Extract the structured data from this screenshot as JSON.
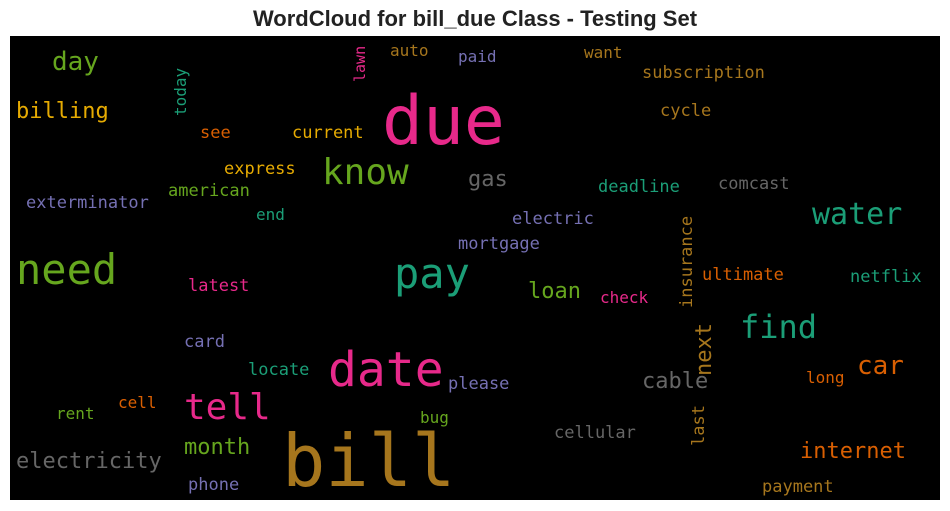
{
  "title": "WordCloud for bill_due Class - Testing Set",
  "chart_data": {
    "type": "wordcloud",
    "background": "#000000",
    "words": [
      {
        "text": "bill",
        "weight": 1.0,
        "color": "#a6761d",
        "orientation": "horizontal"
      },
      {
        "text": "due",
        "weight": 0.92,
        "color": "#e7298a",
        "orientation": "horizontal"
      },
      {
        "text": "date",
        "weight": 0.62,
        "color": "#e7298a",
        "orientation": "horizontal"
      },
      {
        "text": "pay",
        "weight": 0.58,
        "color": "#1b9e77",
        "orientation": "horizontal"
      },
      {
        "text": "need",
        "weight": 0.58,
        "color": "#66a61e",
        "orientation": "horizontal"
      },
      {
        "text": "know",
        "weight": 0.5,
        "color": "#66a61e",
        "orientation": "horizontal"
      },
      {
        "text": "tell",
        "weight": 0.48,
        "color": "#e7298a",
        "orientation": "horizontal"
      },
      {
        "text": "find",
        "weight": 0.44,
        "color": "#1b9e77",
        "orientation": "horizontal"
      },
      {
        "text": "water",
        "weight": 0.4,
        "color": "#1b9e77",
        "orientation": "horizontal"
      },
      {
        "text": "car",
        "weight": 0.36,
        "color": "#d95f02",
        "orientation": "horizontal"
      },
      {
        "text": "day",
        "weight": 0.36,
        "color": "#66a61e",
        "orientation": "horizontal"
      },
      {
        "text": "electricity",
        "weight": 0.32,
        "color": "#666666",
        "orientation": "horizontal"
      },
      {
        "text": "billing",
        "weight": 0.32,
        "color": "#e6ab02",
        "orientation": "horizontal"
      },
      {
        "text": "month",
        "weight": 0.3,
        "color": "#66a61e",
        "orientation": "horizontal"
      },
      {
        "text": "internet",
        "weight": 0.3,
        "color": "#d95f02",
        "orientation": "horizontal"
      },
      {
        "text": "cable",
        "weight": 0.3,
        "color": "#666666",
        "orientation": "horizontal"
      },
      {
        "text": "gas",
        "weight": 0.3,
        "color": "#666666",
        "orientation": "horizontal"
      },
      {
        "text": "next",
        "weight": 0.3,
        "color": "#a6761d",
        "orientation": "vertical"
      },
      {
        "text": "loan",
        "weight": 0.28,
        "color": "#66a61e",
        "orientation": "horizontal"
      },
      {
        "text": "exterminator",
        "weight": 0.24,
        "color": "#7570b3",
        "orientation": "horizontal"
      },
      {
        "text": "express",
        "weight": 0.24,
        "color": "#e6ab02",
        "orientation": "horizontal"
      },
      {
        "text": "current",
        "weight": 0.24,
        "color": "#e6ab02",
        "orientation": "horizontal"
      },
      {
        "text": "see",
        "weight": 0.24,
        "color": "#d95f02",
        "orientation": "horizontal"
      },
      {
        "text": "american",
        "weight": 0.24,
        "color": "#66a61e",
        "orientation": "horizontal"
      },
      {
        "text": "end",
        "weight": 0.22,
        "color": "#1b9e77",
        "orientation": "horizontal"
      },
      {
        "text": "subscription",
        "weight": 0.24,
        "color": "#a6761d",
        "orientation": "horizontal"
      },
      {
        "text": "cycle",
        "weight": 0.24,
        "color": "#a6761d",
        "orientation": "horizontal"
      },
      {
        "text": "comcast",
        "weight": 0.24,
        "color": "#666666",
        "orientation": "horizontal"
      },
      {
        "text": "deadline",
        "weight": 0.24,
        "color": "#1b9e77",
        "orientation": "horizontal"
      },
      {
        "text": "electric",
        "weight": 0.24,
        "color": "#7570b3",
        "orientation": "horizontal"
      },
      {
        "text": "mortgage",
        "weight": 0.24,
        "color": "#7570b3",
        "orientation": "horizontal"
      },
      {
        "text": "insurance",
        "weight": 0.24,
        "color": "#a6761d",
        "orientation": "vertical"
      },
      {
        "text": "ultimate",
        "weight": 0.24,
        "color": "#d95f02",
        "orientation": "horizontal"
      },
      {
        "text": "netflix",
        "weight": 0.24,
        "color": "#1b9e77",
        "orientation": "horizontal"
      },
      {
        "text": "check",
        "weight": 0.22,
        "color": "#e7298a",
        "orientation": "horizontal"
      },
      {
        "text": "latest",
        "weight": 0.22,
        "color": "#e7298a",
        "orientation": "horizontal"
      },
      {
        "text": "card",
        "weight": 0.22,
        "color": "#7570b3",
        "orientation": "horizontal"
      },
      {
        "text": "locate",
        "weight": 0.24,
        "color": "#1b9e77",
        "orientation": "horizontal"
      },
      {
        "text": "please",
        "weight": 0.24,
        "color": "#7570b3",
        "orientation": "horizontal"
      },
      {
        "text": "long",
        "weight": 0.22,
        "color": "#d95f02",
        "orientation": "horizontal"
      },
      {
        "text": "rent",
        "weight": 0.22,
        "color": "#66a61e",
        "orientation": "horizontal"
      },
      {
        "text": "cell",
        "weight": 0.22,
        "color": "#d95f02",
        "orientation": "horizontal"
      },
      {
        "text": "bug",
        "weight": 0.22,
        "color": "#66a61e",
        "orientation": "horizontal"
      },
      {
        "text": "cellular",
        "weight": 0.24,
        "color": "#666666",
        "orientation": "horizontal"
      },
      {
        "text": "last",
        "weight": 0.24,
        "color": "#a6761d",
        "orientation": "vertical"
      },
      {
        "text": "phone",
        "weight": 0.22,
        "color": "#7570b3",
        "orientation": "horizontal"
      },
      {
        "text": "payment",
        "weight": 0.24,
        "color": "#a6761d",
        "orientation": "horizontal"
      },
      {
        "text": "today",
        "weight": 0.22,
        "color": "#1b9e77",
        "orientation": "vertical"
      },
      {
        "text": "lawn",
        "weight": 0.2,
        "color": "#e7298a",
        "orientation": "vertical"
      },
      {
        "text": "auto",
        "weight": 0.22,
        "color": "#a6761d",
        "orientation": "horizontal"
      },
      {
        "text": "paid",
        "weight": 0.22,
        "color": "#7570b3",
        "orientation": "horizontal"
      },
      {
        "text": "want",
        "weight": 0.22,
        "color": "#a6761d",
        "orientation": "horizontal"
      }
    ]
  }
}
